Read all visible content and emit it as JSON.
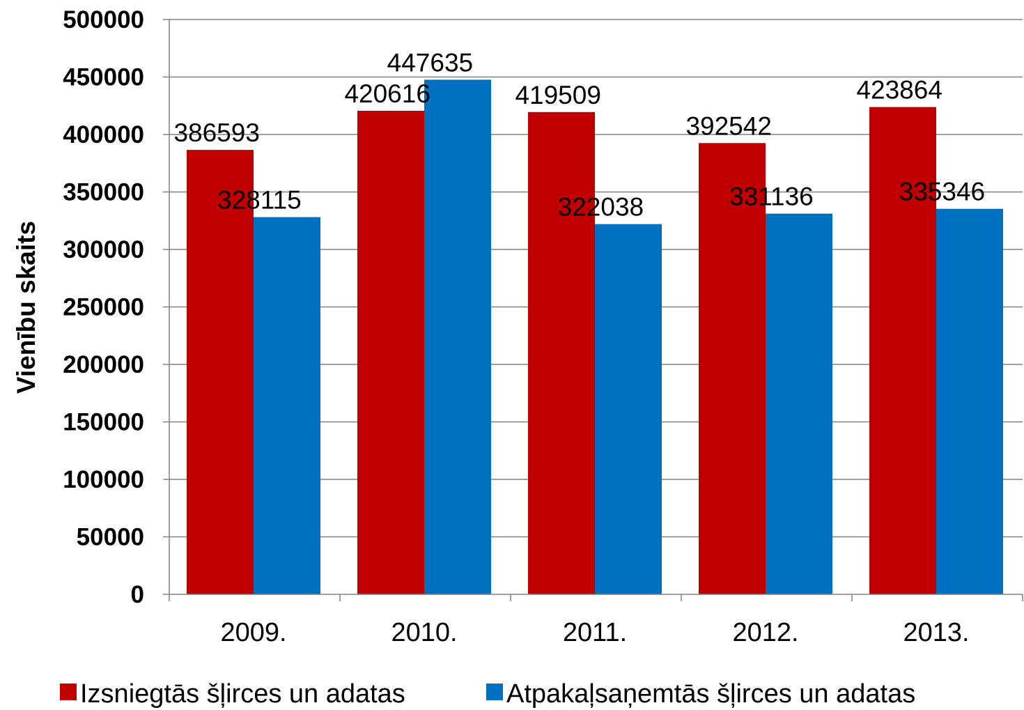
{
  "chart_data": {
    "type": "bar",
    "title": "",
    "xlabel": "",
    "ylabel": "Vienību skaits",
    "ylim": [
      0,
      500000
    ],
    "ytick_step": 50000,
    "yticks": [
      "0",
      "50000",
      "100000",
      "150000",
      "200000",
      "250000",
      "300000",
      "350000",
      "400000",
      "450000",
      "500000"
    ],
    "grid": true,
    "legend_position": "bottom",
    "categories": [
      "2009.",
      "2010.",
      "2011.",
      "2012.",
      "2013."
    ],
    "series": [
      {
        "name": "Izsniegtās šļirces un adatas",
        "color": "#c00000",
        "values": [
          386593,
          420616,
          419509,
          392542,
          423864
        ],
        "labels": [
          "386593",
          "420616",
          "419509",
          "392542",
          "423864"
        ]
      },
      {
        "name": "Atpakaļsaņemtās šļirces un adatas",
        "color": "#0070c0",
        "values": [
          328115,
          447635,
          322038,
          331136,
          335346
        ],
        "labels": [
          "328115",
          "447635",
          "322038",
          "331136",
          "335346"
        ]
      }
    ]
  }
}
